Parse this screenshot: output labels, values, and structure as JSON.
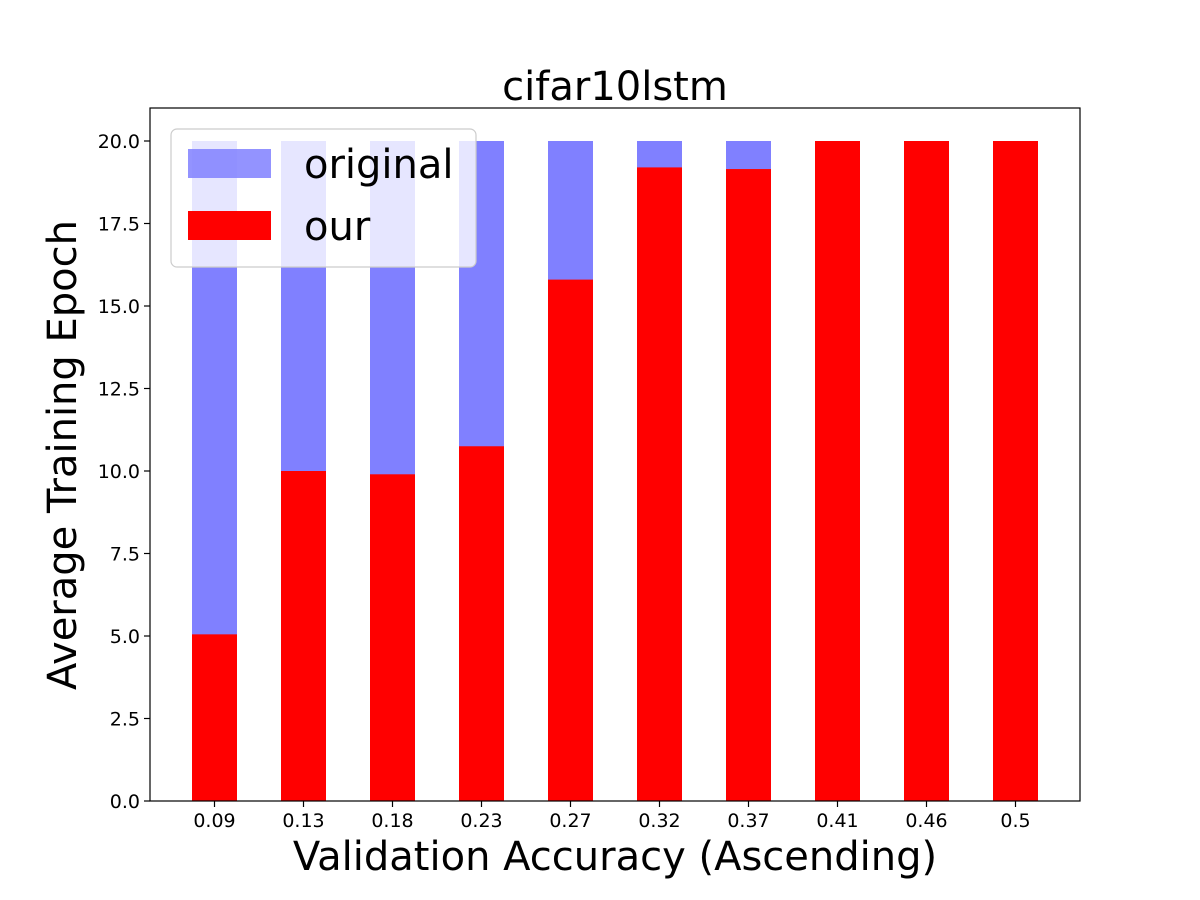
{
  "chart_data": {
    "type": "bar",
    "title": "cifar10lstm",
    "xlabel": "Validation Accuracy (Ascending)",
    "ylabel": "Average Training Epoch",
    "ylim": [
      0,
      21
    ],
    "yticks": [
      "0.0",
      "2.5",
      "5.0",
      "7.5",
      "10.0",
      "12.5",
      "15.0",
      "17.5",
      "20.0"
    ],
    "categories": [
      "0.09",
      "0.13",
      "0.18",
      "0.23",
      "0.27",
      "0.32",
      "0.37",
      "0.41",
      "0.46",
      "0.5"
    ],
    "series": [
      {
        "name": "original",
        "color": "#8080ff",
        "values": [
          20,
          20,
          20,
          20,
          20,
          20,
          20,
          20,
          20,
          20
        ]
      },
      {
        "name": "our",
        "color": "#ff0000",
        "values": [
          5.05,
          10.0,
          9.9,
          10.75,
          15.8,
          19.2,
          19.15,
          20,
          20,
          20
        ]
      }
    ],
    "legend_position": "top-left",
    "grid": false
  }
}
